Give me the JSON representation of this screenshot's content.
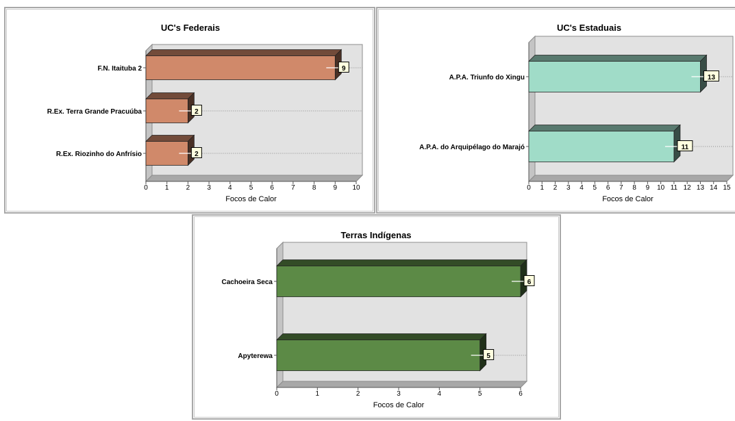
{
  "chart_data": [
    {
      "type": "bar",
      "orientation": "horizontal",
      "title": "UC's Federais",
      "xlabel": "Focos de Calor",
      "categories": [
        "F.N. Itaituba 2",
        "R.Ex. Terra Grande Pracuúba",
        "R.Ex. Riozinho do Anfrísio"
      ],
      "values": [
        9,
        2,
        2
      ],
      "xlim": [
        0,
        10
      ],
      "ticks": [
        "0",
        "1",
        "2",
        "3",
        "4",
        "5",
        "6",
        "7",
        "8",
        "9",
        "10"
      ],
      "color": "#d0896a",
      "grid": false
    },
    {
      "type": "bar",
      "orientation": "horizontal",
      "title": "UC's Estaduais",
      "xlabel": "Focos de Calor",
      "categories": [
        "A.P.A. Triunfo do Xingu",
        "A.P.A. do Arquipélago do Marajó"
      ],
      "values": [
        13,
        11
      ],
      "xlim": [
        0,
        15
      ],
      "ticks": [
        "0",
        "1",
        "2",
        "3",
        "4",
        "5",
        "6",
        "7",
        "8",
        "9",
        "10",
        "11",
        "12",
        "13",
        "14",
        "15"
      ],
      "color": "#a0dcc8",
      "grid": false
    },
    {
      "type": "bar",
      "orientation": "horizontal",
      "title": "Terras Indígenas",
      "xlabel": "Focos de Calor",
      "categories": [
        "Cachoeira Seca",
        "Apyterewa"
      ],
      "values": [
        6,
        5
      ],
      "xlim": [
        0,
        6
      ],
      "ticks": [
        "0",
        "1",
        "2",
        "3",
        "4",
        "5",
        "6"
      ],
      "color": "#5c8a46",
      "grid": false
    }
  ]
}
